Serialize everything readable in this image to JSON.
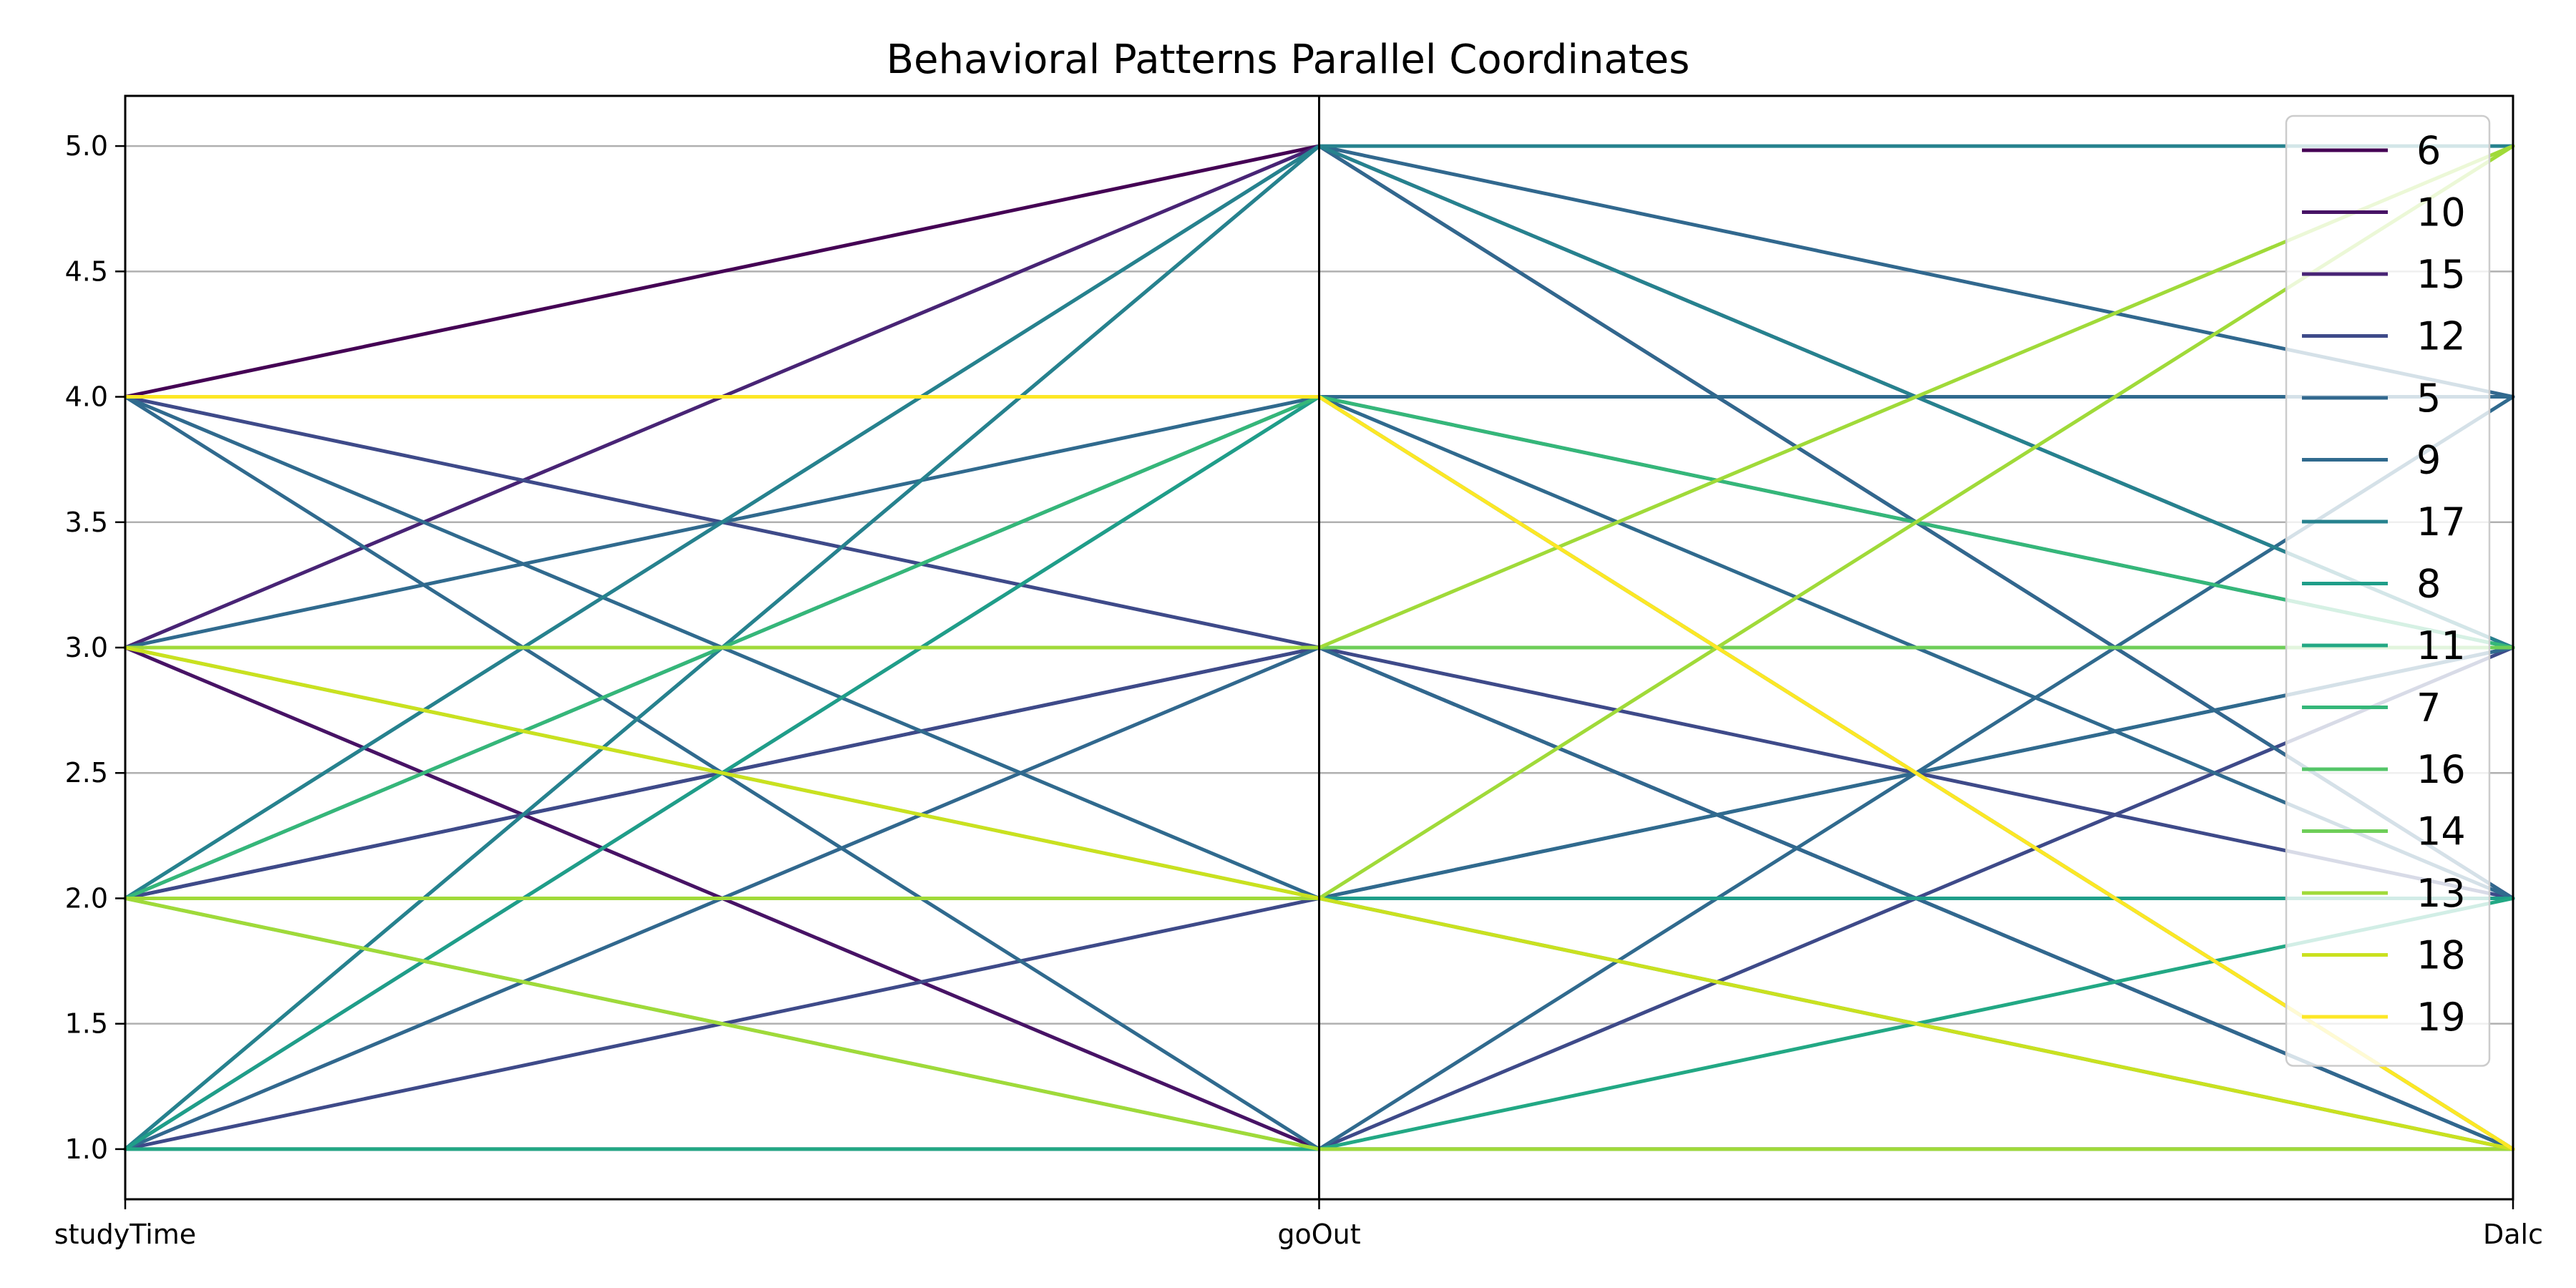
{
  "chart_data": {
    "type": "parallel_coordinates",
    "title": "Behavioral Patterns Parallel Coordinates",
    "axes": [
      "studyTime",
      "goOut",
      "Dalc"
    ],
    "ylim": [
      0.8,
      5.2
    ],
    "yticks": [
      "1.0",
      "1.5",
      "2.0",
      "2.5",
      "3.0",
      "3.5",
      "4.0",
      "4.5",
      "5.0"
    ],
    "grid": true,
    "legend_position": "top-right",
    "series": [
      {
        "name": "6",
        "color": "#440154",
        "lines": [
          [
            4,
            5,
            2
          ]
        ]
      },
      {
        "name": "10",
        "color": "#471365",
        "lines": [
          [
            3,
            1,
            1
          ]
        ]
      },
      {
        "name": "15",
        "color": "#482475",
        "lines": [
          [
            3,
            5,
            3
          ]
        ]
      },
      {
        "name": "12",
        "color": "#3e4a89",
        "lines": [
          [
            2,
            3,
            2
          ],
          [
            1,
            2,
            2
          ],
          [
            2,
            3,
            1
          ],
          [
            4,
            3,
            1
          ],
          [
            1,
            1,
            3
          ]
        ]
      },
      {
        "name": "5",
        "color": "#31688e",
        "lines": [
          [
            1,
            5,
            2
          ],
          [
            2,
            4,
            3
          ],
          [
            1,
            3,
            1
          ],
          [
            1,
            4,
            1
          ],
          [
            2,
            5,
            4
          ]
        ]
      },
      {
        "name": "9",
        "color": "#306a8e",
        "lines": [
          [
            4,
            1,
            4
          ],
          [
            4,
            2,
            3
          ],
          [
            3,
            4,
            2
          ],
          [
            2,
            2,
            3
          ],
          [
            4,
            4,
            4
          ]
        ]
      },
      {
        "name": "17",
        "color": "#26828e",
        "lines": [
          [
            1,
            5,
            5
          ],
          [
            2,
            5,
            3
          ],
          [
            2,
            2,
            1
          ]
        ]
      },
      {
        "name": "8",
        "color": "#1f9e89",
        "lines": [
          [
            1,
            4,
            1
          ],
          [
            2,
            2,
            2
          ]
        ]
      },
      {
        "name": "11",
        "color": "#22a884",
        "lines": [
          [
            1,
            1,
            2
          ]
        ]
      },
      {
        "name": "7",
        "color": "#35b779",
        "lines": [
          [
            2,
            4,
            3
          ]
        ]
      },
      {
        "name": "16",
        "color": "#54c568",
        "lines": [
          [
            2,
            1,
            1
          ]
        ]
      },
      {
        "name": "14",
        "color": "#6ece58",
        "lines": [
          [
            3,
            3,
            3
          ],
          [
            3,
            2,
            1
          ]
        ]
      },
      {
        "name": "13",
        "color": "#a0da39",
        "lines": [
          [
            4,
            4,
            1
          ],
          [
            3,
            3,
            5
          ],
          [
            2,
            2,
            5
          ],
          [
            2,
            1,
            1
          ]
        ]
      },
      {
        "name": "18",
        "color": "#cae11f",
        "lines": [
          [
            3,
            2,
            1
          ]
        ]
      },
      {
        "name": "19",
        "color": "#fde725",
        "lines": [
          [
            4,
            4,
            1
          ]
        ]
      }
    ]
  }
}
